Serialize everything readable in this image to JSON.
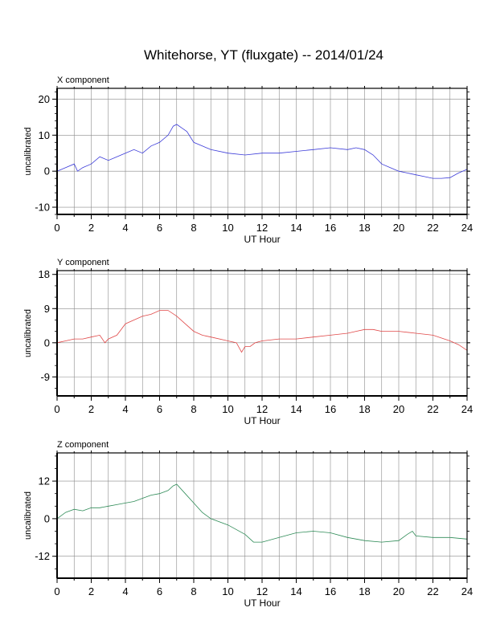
{
  "title": "Whitehorse, YT (fluxgate) -- 2014/01/24",
  "chart_data": [
    {
      "type": "line",
      "panel_label": "X component",
      "xlabel": "UT Hour",
      "ylabel": "uncalibrated",
      "xlim": [
        0,
        24
      ],
      "ylim": [
        -12,
        23
      ],
      "xticks": [
        0,
        2,
        4,
        6,
        8,
        10,
        12,
        14,
        16,
        18,
        20,
        22,
        24
      ],
      "yticks": [
        -10,
        0,
        10,
        20
      ],
      "grid": true,
      "series_color": "#3b3bd9",
      "series": [
        {
          "name": "X",
          "x": [
            0,
            0.5,
            1,
            1.2,
            1.5,
            2,
            2.5,
            3,
            3.5,
            4,
            4.5,
            5,
            5.5,
            6,
            6.5,
            6.8,
            7,
            7.3,
            7.6,
            8,
            8.5,
            9,
            10,
            11,
            12,
            13,
            14,
            15,
            16,
            17,
            17.5,
            18,
            18.5,
            19,
            19.5,
            20,
            20.5,
            21,
            21.5,
            22,
            22.5,
            23,
            23.5,
            24
          ],
          "y": [
            0,
            1,
            2,
            0,
            1,
            2,
            4,
            3,
            4,
            5,
            6,
            5,
            7,
            8,
            10,
            12.5,
            13,
            12,
            11,
            8,
            7,
            6,
            5,
            4.5,
            5,
            5,
            5.5,
            6,
            6.5,
            6,
            6.5,
            6,
            4.5,
            2,
            1,
            0,
            -0.5,
            -1,
            -1.5,
            -2,
            -2,
            -1.8,
            -0.5,
            0.5
          ]
        }
      ]
    },
    {
      "type": "line",
      "panel_label": "Y component",
      "xlabel": "UT Hour",
      "ylabel": "uncalibrated",
      "xlim": [
        0,
        24
      ],
      "ylim": [
        -14,
        19
      ],
      "xticks": [
        0,
        2,
        4,
        6,
        8,
        10,
        12,
        14,
        16,
        18,
        20,
        22,
        24
      ],
      "yticks": [
        -9,
        0,
        9,
        18
      ],
      "grid": true,
      "series_color": "#e04848",
      "series": [
        {
          "name": "Y",
          "x": [
            0,
            0.5,
            1,
            1.5,
            2,
            2.5,
            2.8,
            3,
            3.5,
            4,
            4.5,
            5,
            5.5,
            6,
            6.5,
            7,
            7.5,
            8,
            8.5,
            9,
            10,
            10.5,
            10.8,
            11,
            11.3,
            11.6,
            12,
            13,
            14,
            15,
            16,
            17,
            17.5,
            18,
            18.5,
            19,
            19.5,
            20,
            21,
            22,
            23,
            23.5,
            24
          ],
          "y": [
            0,
            0.5,
            1,
            1,
            1.5,
            2,
            0,
            1,
            2,
            5,
            6,
            7,
            7.5,
            8.5,
            8.5,
            7,
            5,
            3,
            2,
            1.5,
            0.5,
            0,
            -2.5,
            -1,
            -1,
            0,
            0.5,
            1,
            1,
            1.5,
            2,
            2.5,
            3,
            3.5,
            3.5,
            3,
            3,
            3,
            2.5,
            2,
            0.5,
            -0.5,
            -2
          ]
        }
      ]
    },
    {
      "type": "line",
      "panel_label": "Z component",
      "xlabel": "UT Hour",
      "ylabel": "uncalibrated",
      "xlim": [
        0,
        24
      ],
      "ylim": [
        -19,
        21
      ],
      "xticks": [
        0,
        2,
        4,
        6,
        8,
        10,
        12,
        14,
        16,
        18,
        20,
        22,
        24
      ],
      "yticks": [
        -12,
        0,
        12
      ],
      "grid": true,
      "series_color": "#2e8b57",
      "series": [
        {
          "name": "Z",
          "x": [
            0,
            0.5,
            1,
            1.5,
            2,
            2.5,
            3,
            3.5,
            4,
            4.5,
            5,
            5.5,
            6,
            6.5,
            6.8,
            7,
            7.5,
            8,
            8.5,
            9,
            10,
            11,
            11.5,
            12,
            13,
            14,
            15,
            16,
            17,
            18,
            19,
            20,
            20.5,
            20.8,
            21,
            22,
            23,
            24
          ],
          "y": [
            0,
            2,
            3,
            2.5,
            3.5,
            3.5,
            4,
            4.5,
            5,
            5.5,
            6.5,
            7.5,
            8,
            9,
            10.5,
            11,
            8,
            5,
            2,
            0,
            -2,
            -5,
            -7.5,
            -7.5,
            -6,
            -4.5,
            -4,
            -4.5,
            -6,
            -7,
            -7.5,
            -7,
            -5,
            -4,
            -5.5,
            -6,
            -6,
            -6.5
          ]
        }
      ]
    }
  ]
}
